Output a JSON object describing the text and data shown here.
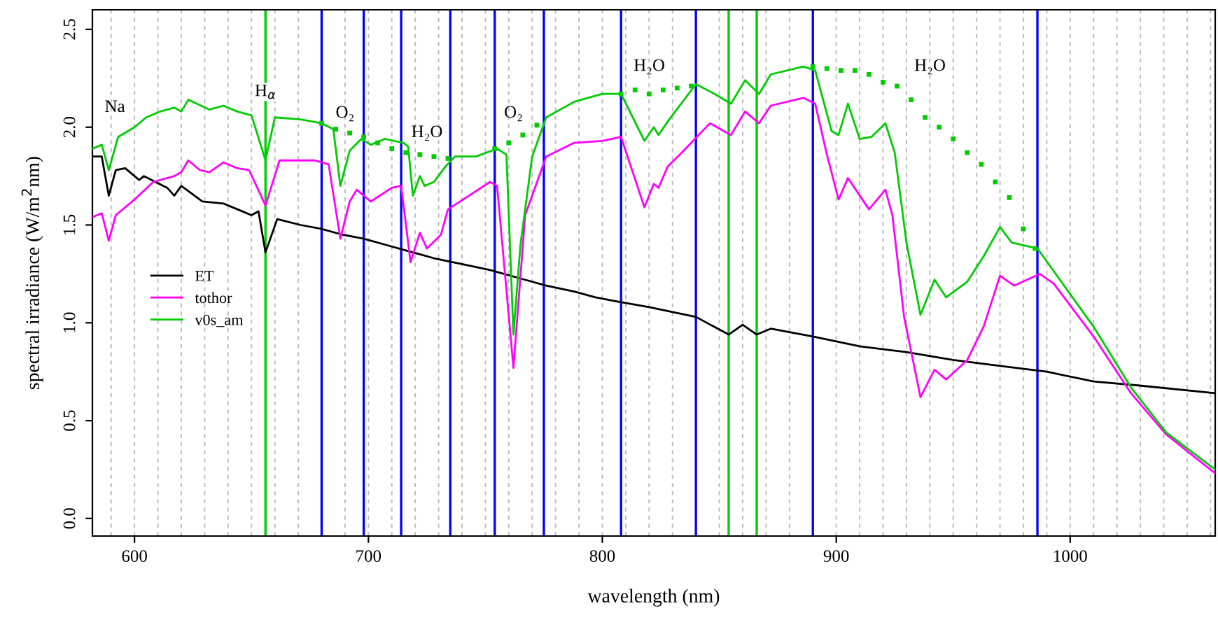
{
  "chart_data": {
    "type": "line",
    "xlabel": "wavelength (nm)",
    "ylabel": "spectral irradiance (W/m$^{2}$nm)",
    "xlim": [
      582,
      1062
    ],
    "xticks": [
      600,
      700,
      800,
      900,
      1000
    ],
    "ylim": [
      -0.09,
      2.6
    ],
    "yticks": [
      {
        "value": 0,
        "label": "0.0"
      },
      {
        "value": 0.5,
        "label": "0.5"
      },
      {
        "value": 1,
        "label": "1.0"
      },
      {
        "value": 1.5,
        "label": "1.5"
      },
      {
        "value": 2,
        "label": "2.0"
      },
      {
        "value": 2.5,
        "label": "2.5"
      }
    ],
    "grid": "x",
    "legend": "left",
    "line_style": "solid",
    "marker": "none",
    "series": [
      {
        "name": "ET",
        "color": "#000000",
        "x": [
          582,
          586,
          589,
          592,
          596,
          602,
          604,
          614,
          617,
          620,
          629,
          638,
          644,
          650,
          653,
          656,
          661,
          671,
          680,
          689,
          698,
          707,
          716,
          722,
          728,
          740,
          752,
          764,
          776,
          788,
          797,
          806,
          820,
          840,
          854,
          860,
          866,
          872,
          890,
          910,
          930,
          950,
          970,
          990,
          1010,
          1029,
          1062
        ],
        "values": [
          1.85,
          1.85,
          1.65,
          1.78,
          1.79,
          1.73,
          1.75,
          1.69,
          1.65,
          1.7,
          1.62,
          1.61,
          1.58,
          1.55,
          1.57,
          1.36,
          1.53,
          1.5,
          1.48,
          1.45,
          1.43,
          1.4,
          1.37,
          1.35,
          1.33,
          1.3,
          1.27,
          1.23,
          1.19,
          1.16,
          1.13,
          1.11,
          1.08,
          1.03,
          0.94,
          0.99,
          0.94,
          0.97,
          0.93,
          0.88,
          0.85,
          0.81,
          0.78,
          0.75,
          0.7,
          0.68,
          0.64
        ]
      },
      {
        "name": "tothor",
        "color": "#ff00ff",
        "x": [
          582,
          586,
          589,
          592,
          600,
          608,
          617,
          620,
          623,
          628,
          632,
          638,
          644,
          649,
          656,
          662,
          677,
          683,
          688,
          692,
          695,
          701,
          710,
          714,
          718,
          722,
          725,
          731,
          734,
          743,
          752,
          755,
          762,
          767,
          776,
          788,
          800,
          808,
          818,
          822,
          824,
          828,
          834,
          846,
          855,
          861,
          867,
          872,
          886,
          891,
          896,
          901,
          905,
          914,
          921,
          924,
          929,
          936,
          942,
          947,
          956,
          963,
          970,
          976,
          987,
          993,
          1010,
          1026,
          1041,
          1062
        ],
        "values": [
          1.54,
          1.56,
          1.42,
          1.55,
          1.63,
          1.72,
          1.75,
          1.77,
          1.83,
          1.78,
          1.77,
          1.82,
          1.79,
          1.78,
          1.6,
          1.83,
          1.83,
          1.81,
          1.43,
          1.62,
          1.68,
          1.62,
          1.69,
          1.7,
          1.31,
          1.46,
          1.38,
          1.45,
          1.58,
          1.65,
          1.72,
          1.7,
          0.77,
          1.55,
          1.85,
          1.92,
          1.93,
          1.95,
          1.59,
          1.71,
          1.69,
          1.8,
          1.87,
          2.02,
          1.96,
          2.08,
          2.02,
          2.11,
          2.15,
          2.12,
          1.86,
          1.63,
          1.74,
          1.58,
          1.68,
          1.55,
          1.03,
          0.62,
          0.76,
          0.71,
          0.81,
          0.98,
          1.24,
          1.19,
          1.25,
          1.2,
          0.93,
          0.64,
          0.43,
          0.23
        ]
      },
      {
        "name": "v0s_am",
        "color": "#00cc00",
        "x": [
          582,
          586,
          589,
          593,
          600,
          605,
          611,
          617,
          620,
          623,
          632,
          638,
          644,
          650,
          656,
          660,
          671,
          680,
          685,
          688,
          692,
          697,
          701,
          707,
          715,
          717,
          719,
          722,
          724,
          728,
          733,
          737,
          746,
          755,
          759,
          762,
          765,
          770,
          776,
          788,
          800,
          808,
          818,
          822,
          824,
          828,
          840,
          848,
          855,
          861,
          867,
          872,
          886,
          891,
          898,
          901,
          905,
          910,
          915,
          921,
          925,
          930,
          936,
          942,
          947,
          956,
          963,
          970,
          975,
          986,
          1010,
          1026,
          1041,
          1062
        ],
        "values": [
          1.89,
          1.91,
          1.78,
          1.95,
          2.0,
          2.05,
          2.08,
          2.1,
          2.08,
          2.14,
          2.09,
          2.11,
          2.08,
          2.06,
          1.83,
          2.05,
          2.04,
          2.02,
          1.99,
          1.7,
          1.88,
          1.94,
          1.91,
          1.94,
          1.92,
          1.9,
          1.65,
          1.75,
          1.7,
          1.72,
          1.8,
          1.85,
          1.85,
          1.89,
          1.86,
          0.94,
          1.4,
          1.85,
          2.05,
          2.13,
          2.17,
          2.17,
          1.93,
          2.0,
          1.96,
          2.03,
          2.22,
          2.17,
          2.12,
          2.24,
          2.17,
          2.27,
          2.31,
          2.29,
          1.98,
          1.96,
          2.12,
          1.94,
          1.95,
          2.02,
          1.87,
          1.41,
          1.04,
          1.22,
          1.13,
          1.21,
          1.34,
          1.49,
          1.41,
          1.38,
          0.98,
          0.67,
          0.44,
          0.25
        ]
      },
      {
        "type": "scatter",
        "marker": "square",
        "color": "#00cc00",
        "x": [
          680,
          686,
          692,
          698,
          704,
          710,
          716,
          722,
          728,
          734,
          754,
          760,
          766,
          772,
          808,
          814,
          820,
          826,
          832,
          838,
          890,
          896,
          902,
          908,
          914,
          920,
          926,
          932,
          938,
          944,
          950,
          956,
          962,
          968,
          974,
          980,
          985
        ],
        "values": [
          2.02,
          1.99,
          1.97,
          1.95,
          1.92,
          1.89,
          1.87,
          1.86,
          1.85,
          1.84,
          1.89,
          1.92,
          1.96,
          2.01,
          2.17,
          2.19,
          2.17,
          2.19,
          2.2,
          2.21,
          2.31,
          2.3,
          2.29,
          2.29,
          2.27,
          2.23,
          2.21,
          2.14,
          2.05,
          2.0,
          1.94,
          1.87,
          1.81,
          1.72,
          1.64,
          1.48,
          1.38
        ]
      }
    ],
    "ref_lines": [
      {
        "axis": "x",
        "value": 656,
        "color": "#00cc00"
      },
      {
        "axis": "x",
        "value": 680,
        "color": "#0000ff"
      },
      {
        "axis": "x",
        "value": 698,
        "color": "#0000ff"
      },
      {
        "axis": "x",
        "value": 714,
        "color": "#0000ff"
      },
      {
        "axis": "x",
        "value": 735,
        "color": "#0000ff"
      },
      {
        "axis": "x",
        "value": 754,
        "color": "#0000ff"
      },
      {
        "axis": "x",
        "value": 775,
        "color": "#0000ff"
      },
      {
        "axis": "x",
        "value": 808,
        "color": "#0000ff"
      },
      {
        "axis": "x",
        "value": 840,
        "color": "#0000ff"
      },
      {
        "axis": "x",
        "value": 854,
        "color": "#00cc00"
      },
      {
        "axis": "x",
        "value": 866,
        "color": "#00cc00"
      },
      {
        "axis": "x",
        "value": 890,
        "color": "#0000ff"
      },
      {
        "axis": "x",
        "value": 986,
        "color": "#0000ff"
      }
    ],
    "annotations": [
      "Na",
      {
        "text": "H$_{α}$",
        "x": 656,
        "y": 2.18
      },
      "O₂",
      "H₂O",
      "O₂",
      "H₂O",
      "H₂O"
    ]
  }
}
